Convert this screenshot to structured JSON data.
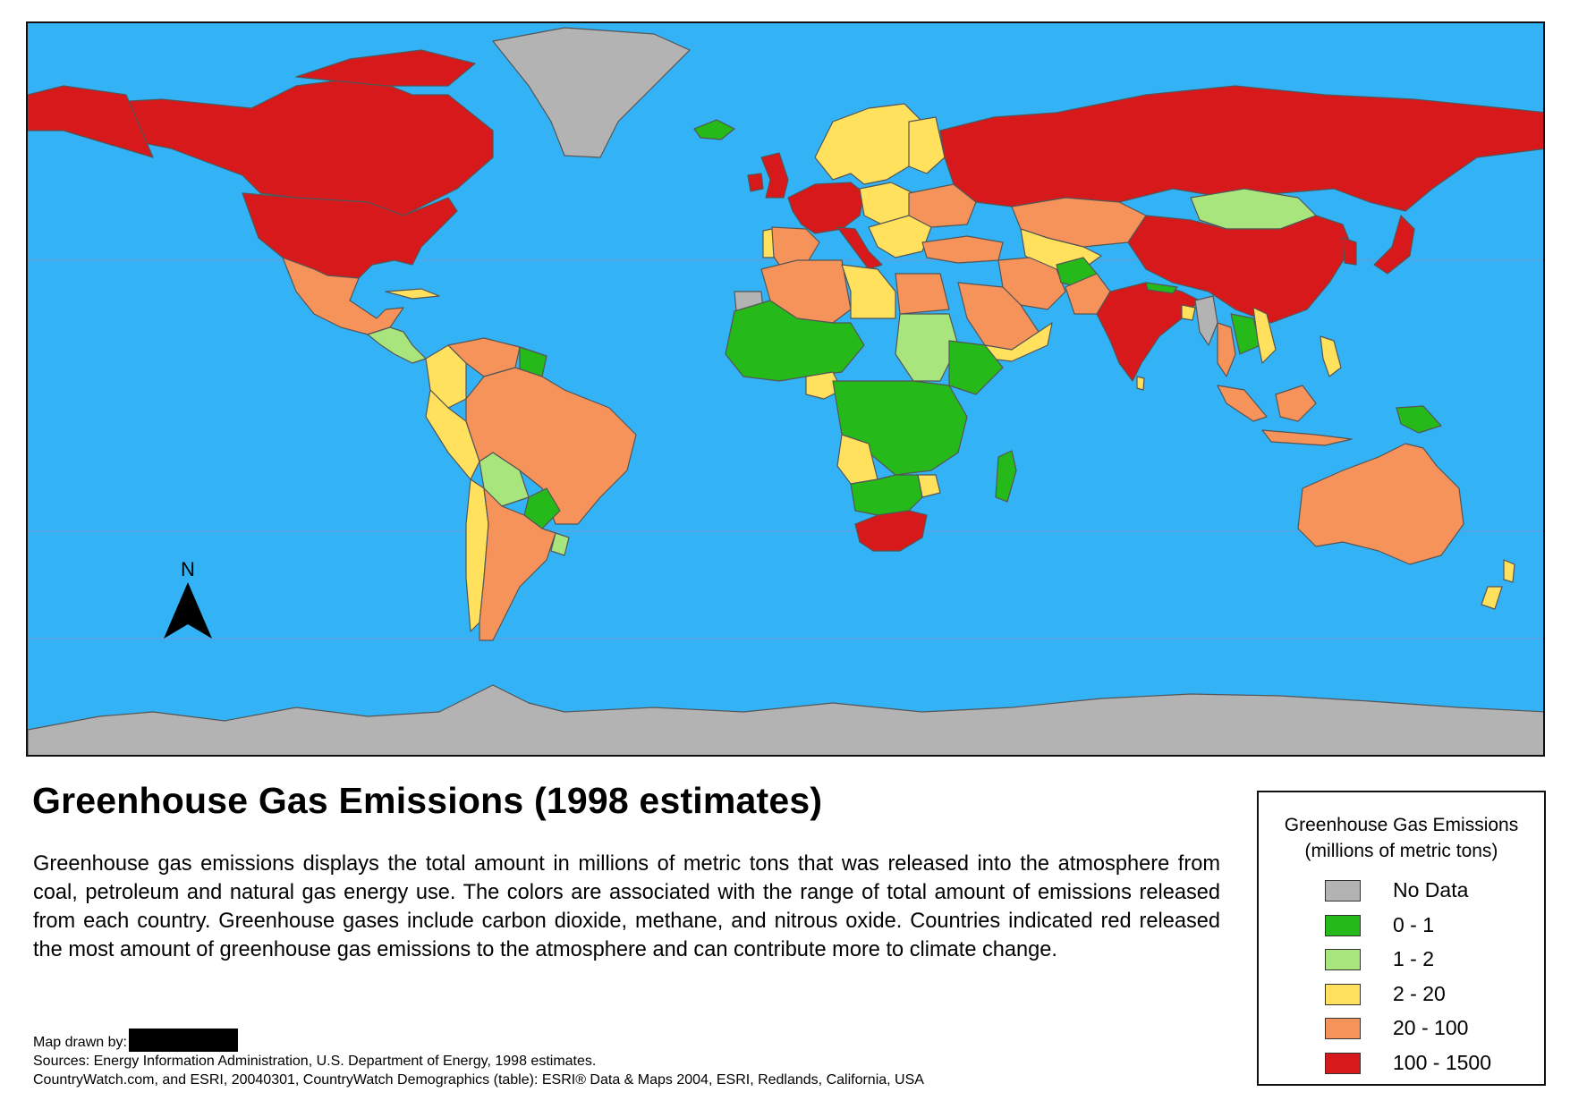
{
  "map": {
    "ocean_color": "#33b3f5",
    "north_arrow_label": "N",
    "class_colors": {
      "no_data": "#b3b3b3",
      "c0_1": "#25b91a",
      "c1_2": "#a8e57c",
      "c2_20": "#ffe15e",
      "c20_100": "#f6935a",
      "c100_1500": "#d7191c"
    }
  },
  "title": "Greenhouse Gas Emissions (1998 estimates)",
  "description": "Greenhouse gas emissions displays the total amount in millions of metric tons that was released into the atmosphere from coal, petroleum and natural gas energy use. The colors are associated with the range of total amount of emissions released from each country. Greenhouse gases include carbon dioxide, methane, and nitrous oxide. Countries indicated red released the most amount of greenhouse gas emissions to the atmosphere and can contribute more to climate change.",
  "credits": {
    "drawn_by_label": "Map drawn by:",
    "sources_line1": "Sources: Energy Information Administration, U.S. Department of Energy, 1998 estimates.",
    "sources_line2": "CountryWatch.com, and ESRI, 20040301, CountryWatch Demographics (table): ESRI® Data & Maps 2004, ESRI, Redlands, California, USA"
  },
  "legend": {
    "title_line1": "Greenhouse Gas Emissions",
    "title_line2": "(millions of metric tons)",
    "items": [
      {
        "label": "No Data",
        "color": "#b3b3b3"
      },
      {
        "label": "0 - 1",
        "color": "#25b91a"
      },
      {
        "label": "1 - 2",
        "color": "#a8e57c"
      },
      {
        "label": "2 - 20",
        "color": "#ffe15e"
      },
      {
        "label": "20 - 100",
        "color": "#f6935a"
      },
      {
        "label": "100 - 1500",
        "color": "#d7191c"
      }
    ]
  }
}
